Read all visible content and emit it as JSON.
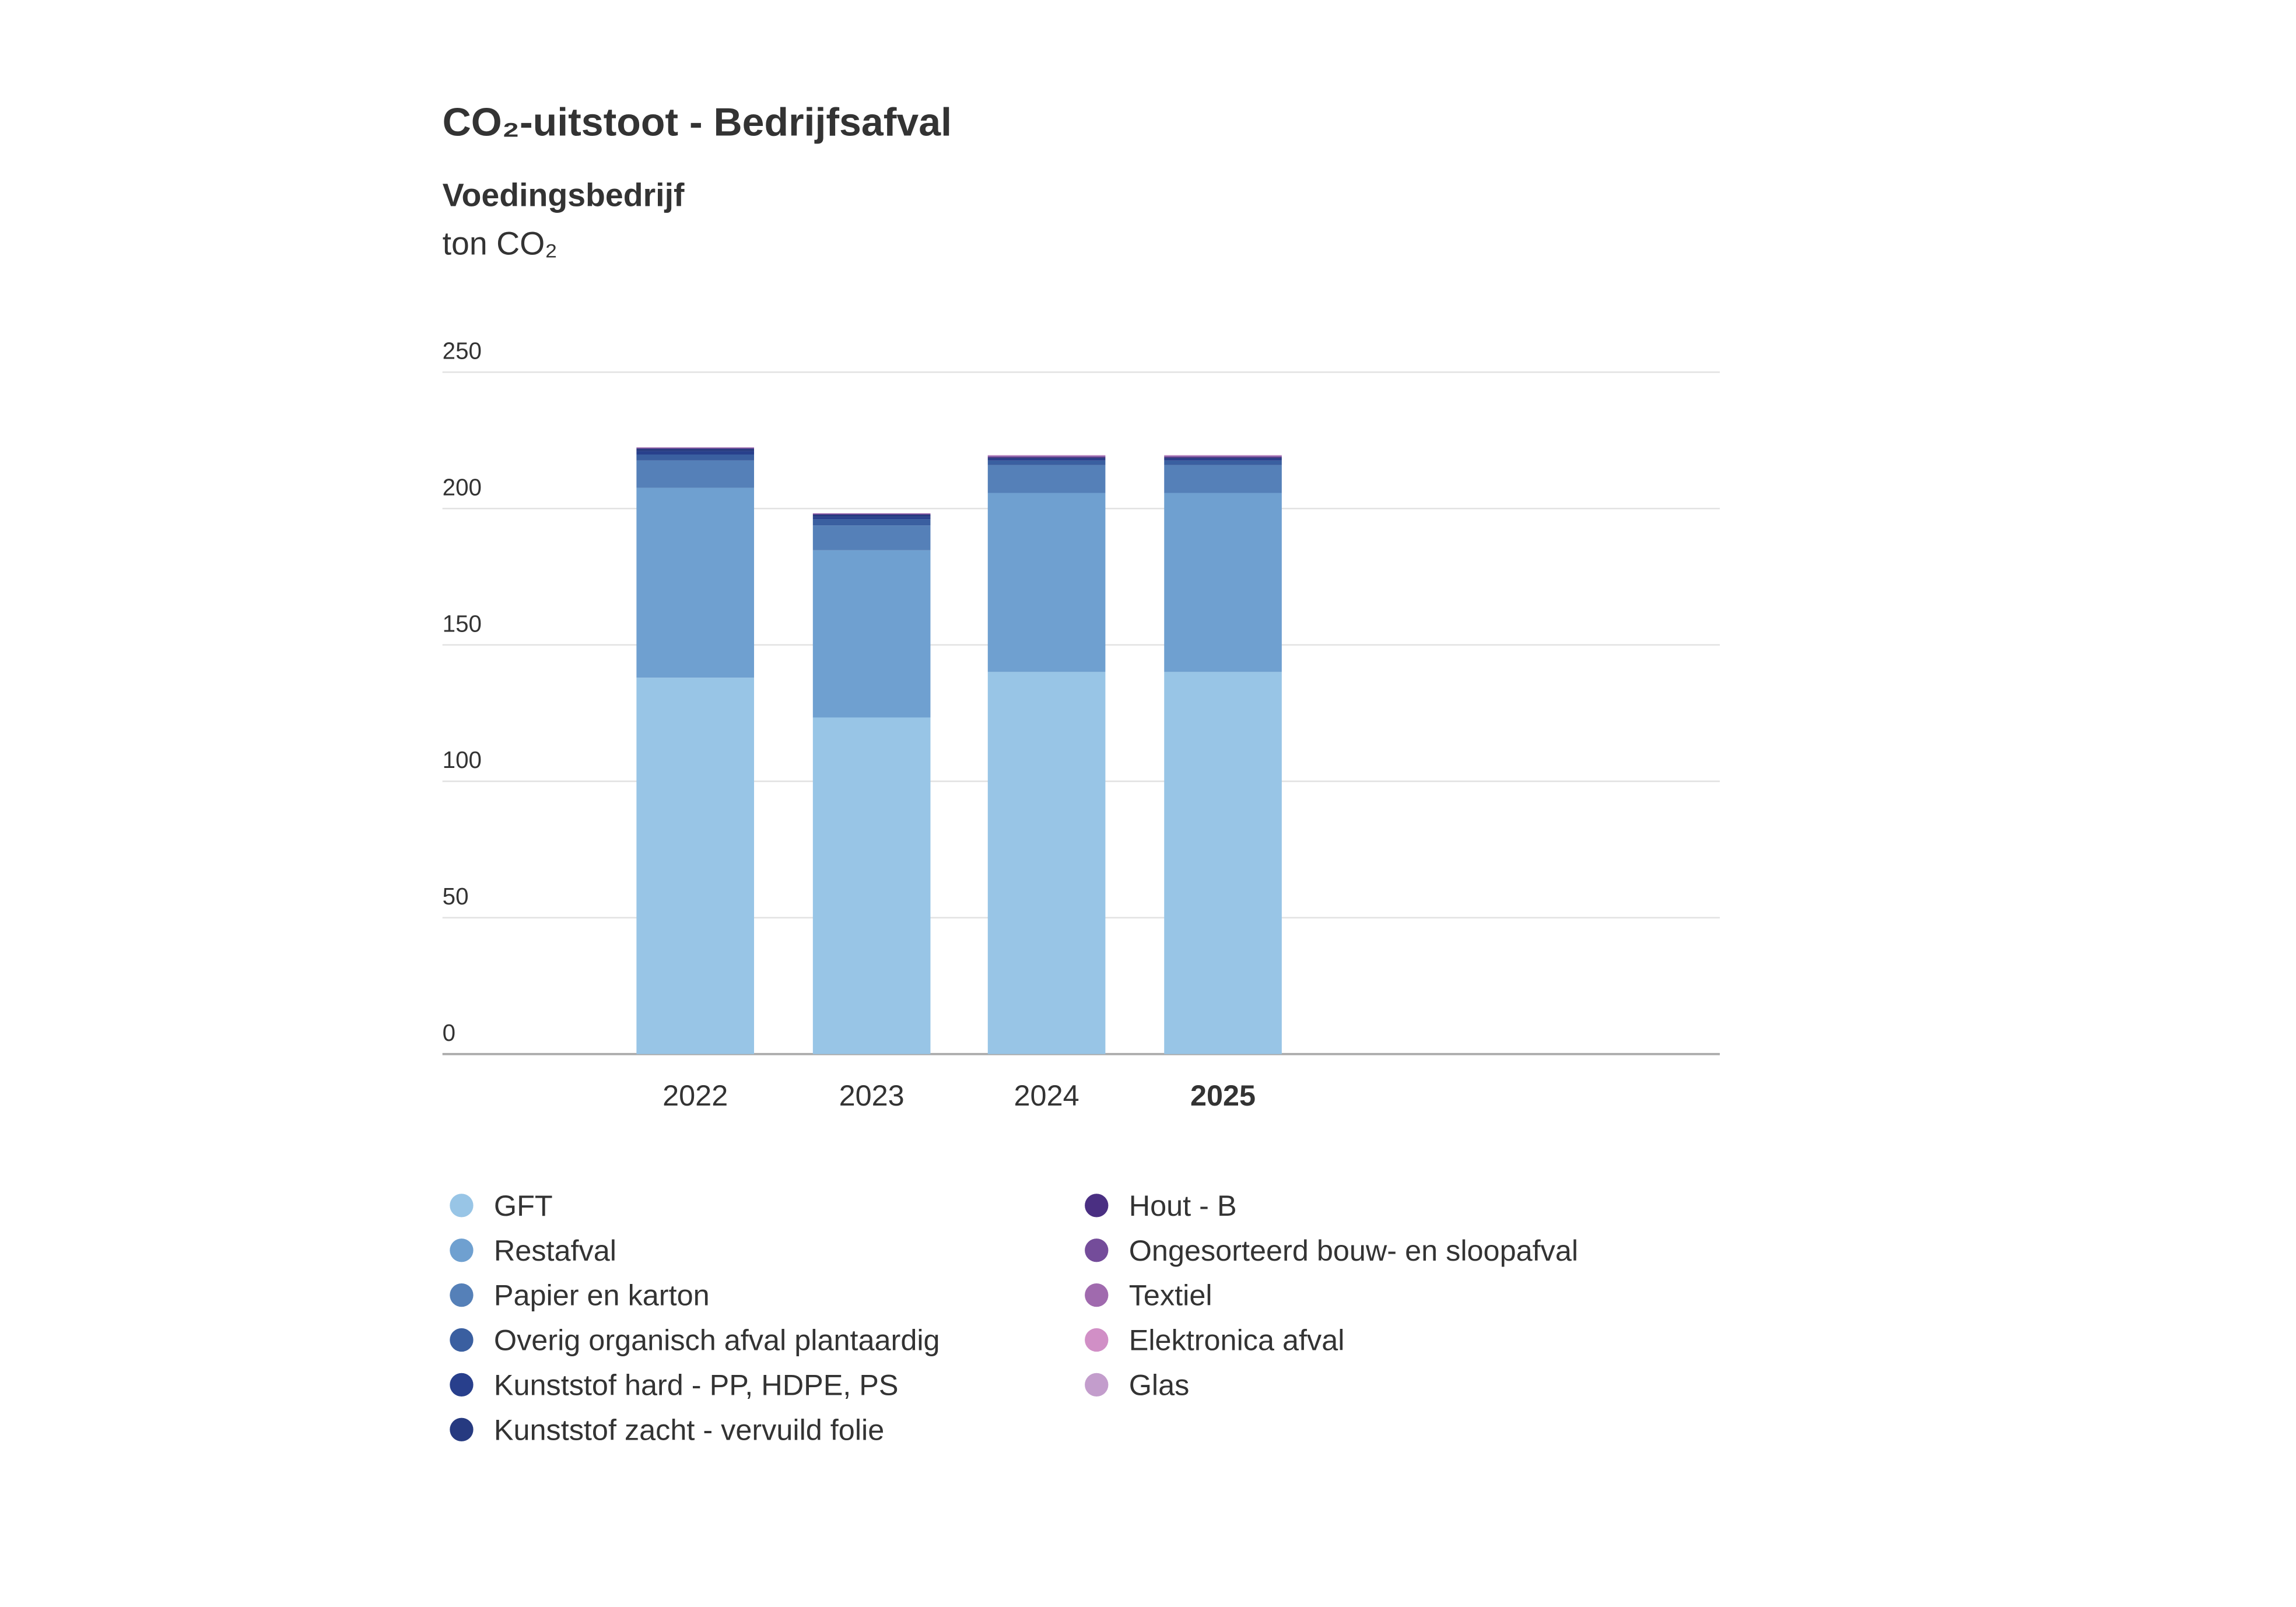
{
  "chart_data": {
    "type": "bar",
    "stacked": true,
    "title": "CO₂-uitstoot - Bedrijfsafval",
    "subtitle": "Voedingsbedrijf",
    "ylabel": "ton CO₂",
    "xlabel": "",
    "ylim": [
      0,
      250
    ],
    "yticks": [
      "0",
      "50",
      "100",
      "150",
      "200",
      "250"
    ],
    "grid": true,
    "legend_position": "bottom",
    "categories": [
      "2022",
      "2023",
      "2024",
      "2025"
    ],
    "highlighted_category": "2025",
    "series": [
      {
        "name": "GFT",
        "color": "#98c5e6",
        "values": [
          138.0,
          123.4,
          140.1,
          140.1
        ]
      },
      {
        "name": "Restafval",
        "color": "#6fa0d0",
        "values": [
          69.6,
          61.3,
          65.6,
          65.6
        ]
      },
      {
        "name": "Papier en karton",
        "color": "#5580b8",
        "values": [
          10.0,
          9.1,
          10.2,
          10.2
        ]
      },
      {
        "name": "Overig organisch afval plantaardig",
        "color": "#3a5fa0",
        "values": [
          2.2,
          2.3,
          1.7,
          1.7
        ]
      },
      {
        "name": "Kunststof hard - PP, HDPE, PS",
        "color": "#283f8c",
        "values": [
          1.2,
          0.9,
          0.6,
          0.6
        ]
      },
      {
        "name": "Kunststof zacht - vervuild folie",
        "color": "#263a80",
        "values": [
          0.9,
          0.7,
          0.4,
          0.4
        ]
      },
      {
        "name": "Hout - B",
        "color": "#4a2f82",
        "values": [
          0.2,
          0.2,
          0.3,
          0.3
        ]
      },
      {
        "name": "Ongesorteerd bouw- en sloopafval",
        "color": "#744c9a",
        "values": [
          0.2,
          0.2,
          0.3,
          0.3
        ]
      },
      {
        "name": "Textiel",
        "color": "#a06aae",
        "values": [
          0.1,
          0.1,
          0.2,
          0.2
        ]
      },
      {
        "name": "Elektronica afval",
        "color": "#d18fc6",
        "values": [
          0.05,
          0.05,
          0.1,
          0.1
        ]
      },
      {
        "name": "Glas",
        "color": "#c39dcc",
        "values": [
          0.05,
          0.05,
          0.1,
          0.1
        ]
      }
    ]
  }
}
